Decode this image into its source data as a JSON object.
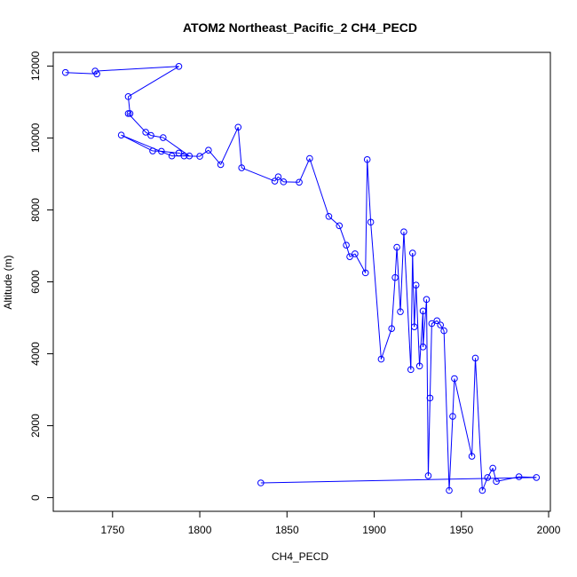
{
  "chart_data": {
    "type": "scatter",
    "title": "ATOM2 Northeast_Pacific_2 CH4_PECD",
    "xlabel": "CH4_PECD",
    "ylabel": "Altitude (m)",
    "xlim": [
      1716,
      2001
    ],
    "ylim": [
      -380,
      12380
    ],
    "xticks": [
      1750,
      1800,
      1850,
      1900,
      1950,
      2000
    ],
    "yticks": [
      0,
      2000,
      4000,
      6000,
      8000,
      10000,
      12000
    ],
    "grid": false,
    "legend": "none",
    "color": "#0000ff",
    "series": [
      {
        "x": [
          1723,
          1741,
          1740,
          1788,
          1759,
          1760,
          1759,
          1769,
          1772,
          1779,
          1794,
          1788,
          1778,
          1773,
          1755,
          1784,
          1791,
          1800,
          1805,
          1812,
          1822,
          1824,
          1843,
          1845,
          1848,
          1857,
          1863,
          1874,
          1880,
          1884,
          1886,
          1889,
          1895,
          1896,
          1898,
          1904,
          1910,
          1912,
          1913,
          1915,
          1917,
          1921,
          1922,
          1923,
          1924,
          1926,
          1928,
          1928,
          1930,
          1931,
          1932,
          1933,
          1936,
          1938,
          1940,
          1943,
          1945,
          1946,
          1956,
          1958,
          1962,
          1965,
          1968,
          1970,
          1983,
          1993,
          1835
        ],
        "y": [
          11820,
          11780,
          11860,
          11990,
          11150,
          10680,
          10680,
          10160,
          10070,
          10010,
          9500,
          9580,
          9630,
          9640,
          10080,
          9500,
          9500,
          9490,
          9660,
          9260,
          10300,
          9170,
          8800,
          8920,
          8780,
          8770,
          9430,
          7820,
          7560,
          7020,
          6700,
          6780,
          6250,
          9400,
          7660,
          3850,
          4700,
          6120,
          6960,
          5170,
          7390,
          3560,
          6800,
          4750,
          5910,
          3660,
          5190,
          4190,
          5510,
          610,
          2770,
          4840,
          4920,
          4800,
          4640,
          200,
          2260,
          3310,
          1150,
          3880,
          200,
          560,
          820,
          450,
          580,
          560,
          410
        ]
      }
    ]
  }
}
